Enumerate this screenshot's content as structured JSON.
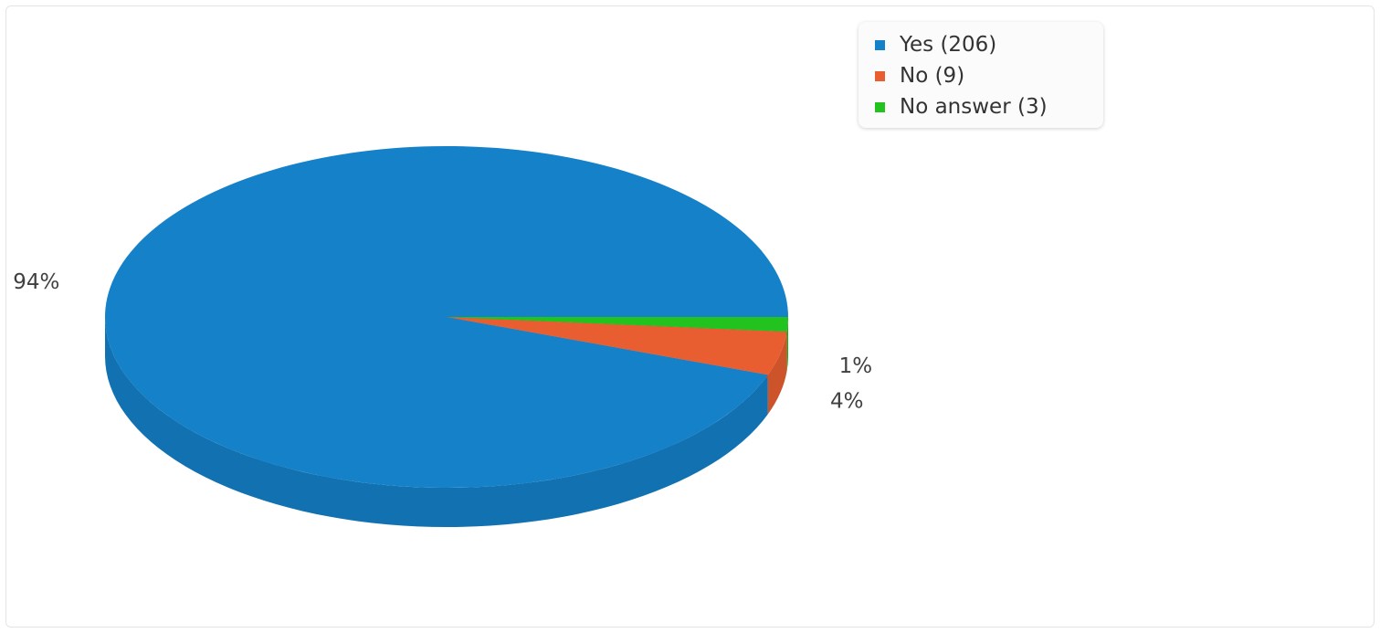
{
  "chart_data": {
    "type": "pie",
    "style": "3d",
    "slices": [
      {
        "label": "Yes",
        "count": 206,
        "legend": "Yes (206)",
        "percent_label": "94%",
        "color": "#1581c9"
      },
      {
        "label": "No",
        "count": 9,
        "legend": "No (9)",
        "percent_label": "4%",
        "color": "#e85e30"
      },
      {
        "label": "No answer",
        "count": 3,
        "legend": "No answer (3)",
        "percent_label": "1%",
        "color": "#22c21f"
      }
    ],
    "legend_position": "top-right"
  }
}
